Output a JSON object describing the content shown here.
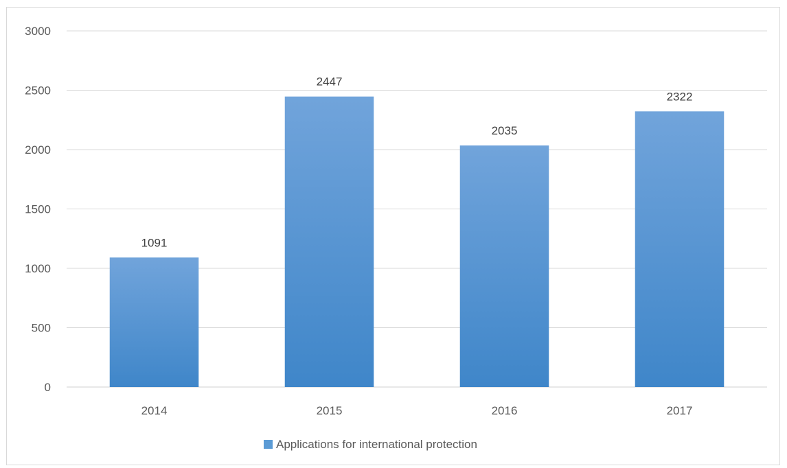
{
  "chart_data": {
    "type": "bar",
    "categories": [
      "2014",
      "2015",
      "2016",
      "2017"
    ],
    "series": [
      {
        "name": "Applications for international protection",
        "values": [
          1091,
          2447,
          2035,
          2322
        ]
      }
    ],
    "title": "",
    "xlabel": "",
    "ylabel": "",
    "ylim": [
      0,
      3000
    ],
    "yticks": [
      0,
      500,
      1000,
      1500,
      2000,
      2500,
      3000
    ],
    "grid": true,
    "legend_position": "bottom",
    "data_labels": true,
    "colors": {
      "bar_top": "#71a4db",
      "bar_bottom": "#3f86c9",
      "grid": "#d9d9d9",
      "axis": "#d9d9d9",
      "text": "#595959",
      "legend_swatch": "#5b9bd5"
    }
  }
}
